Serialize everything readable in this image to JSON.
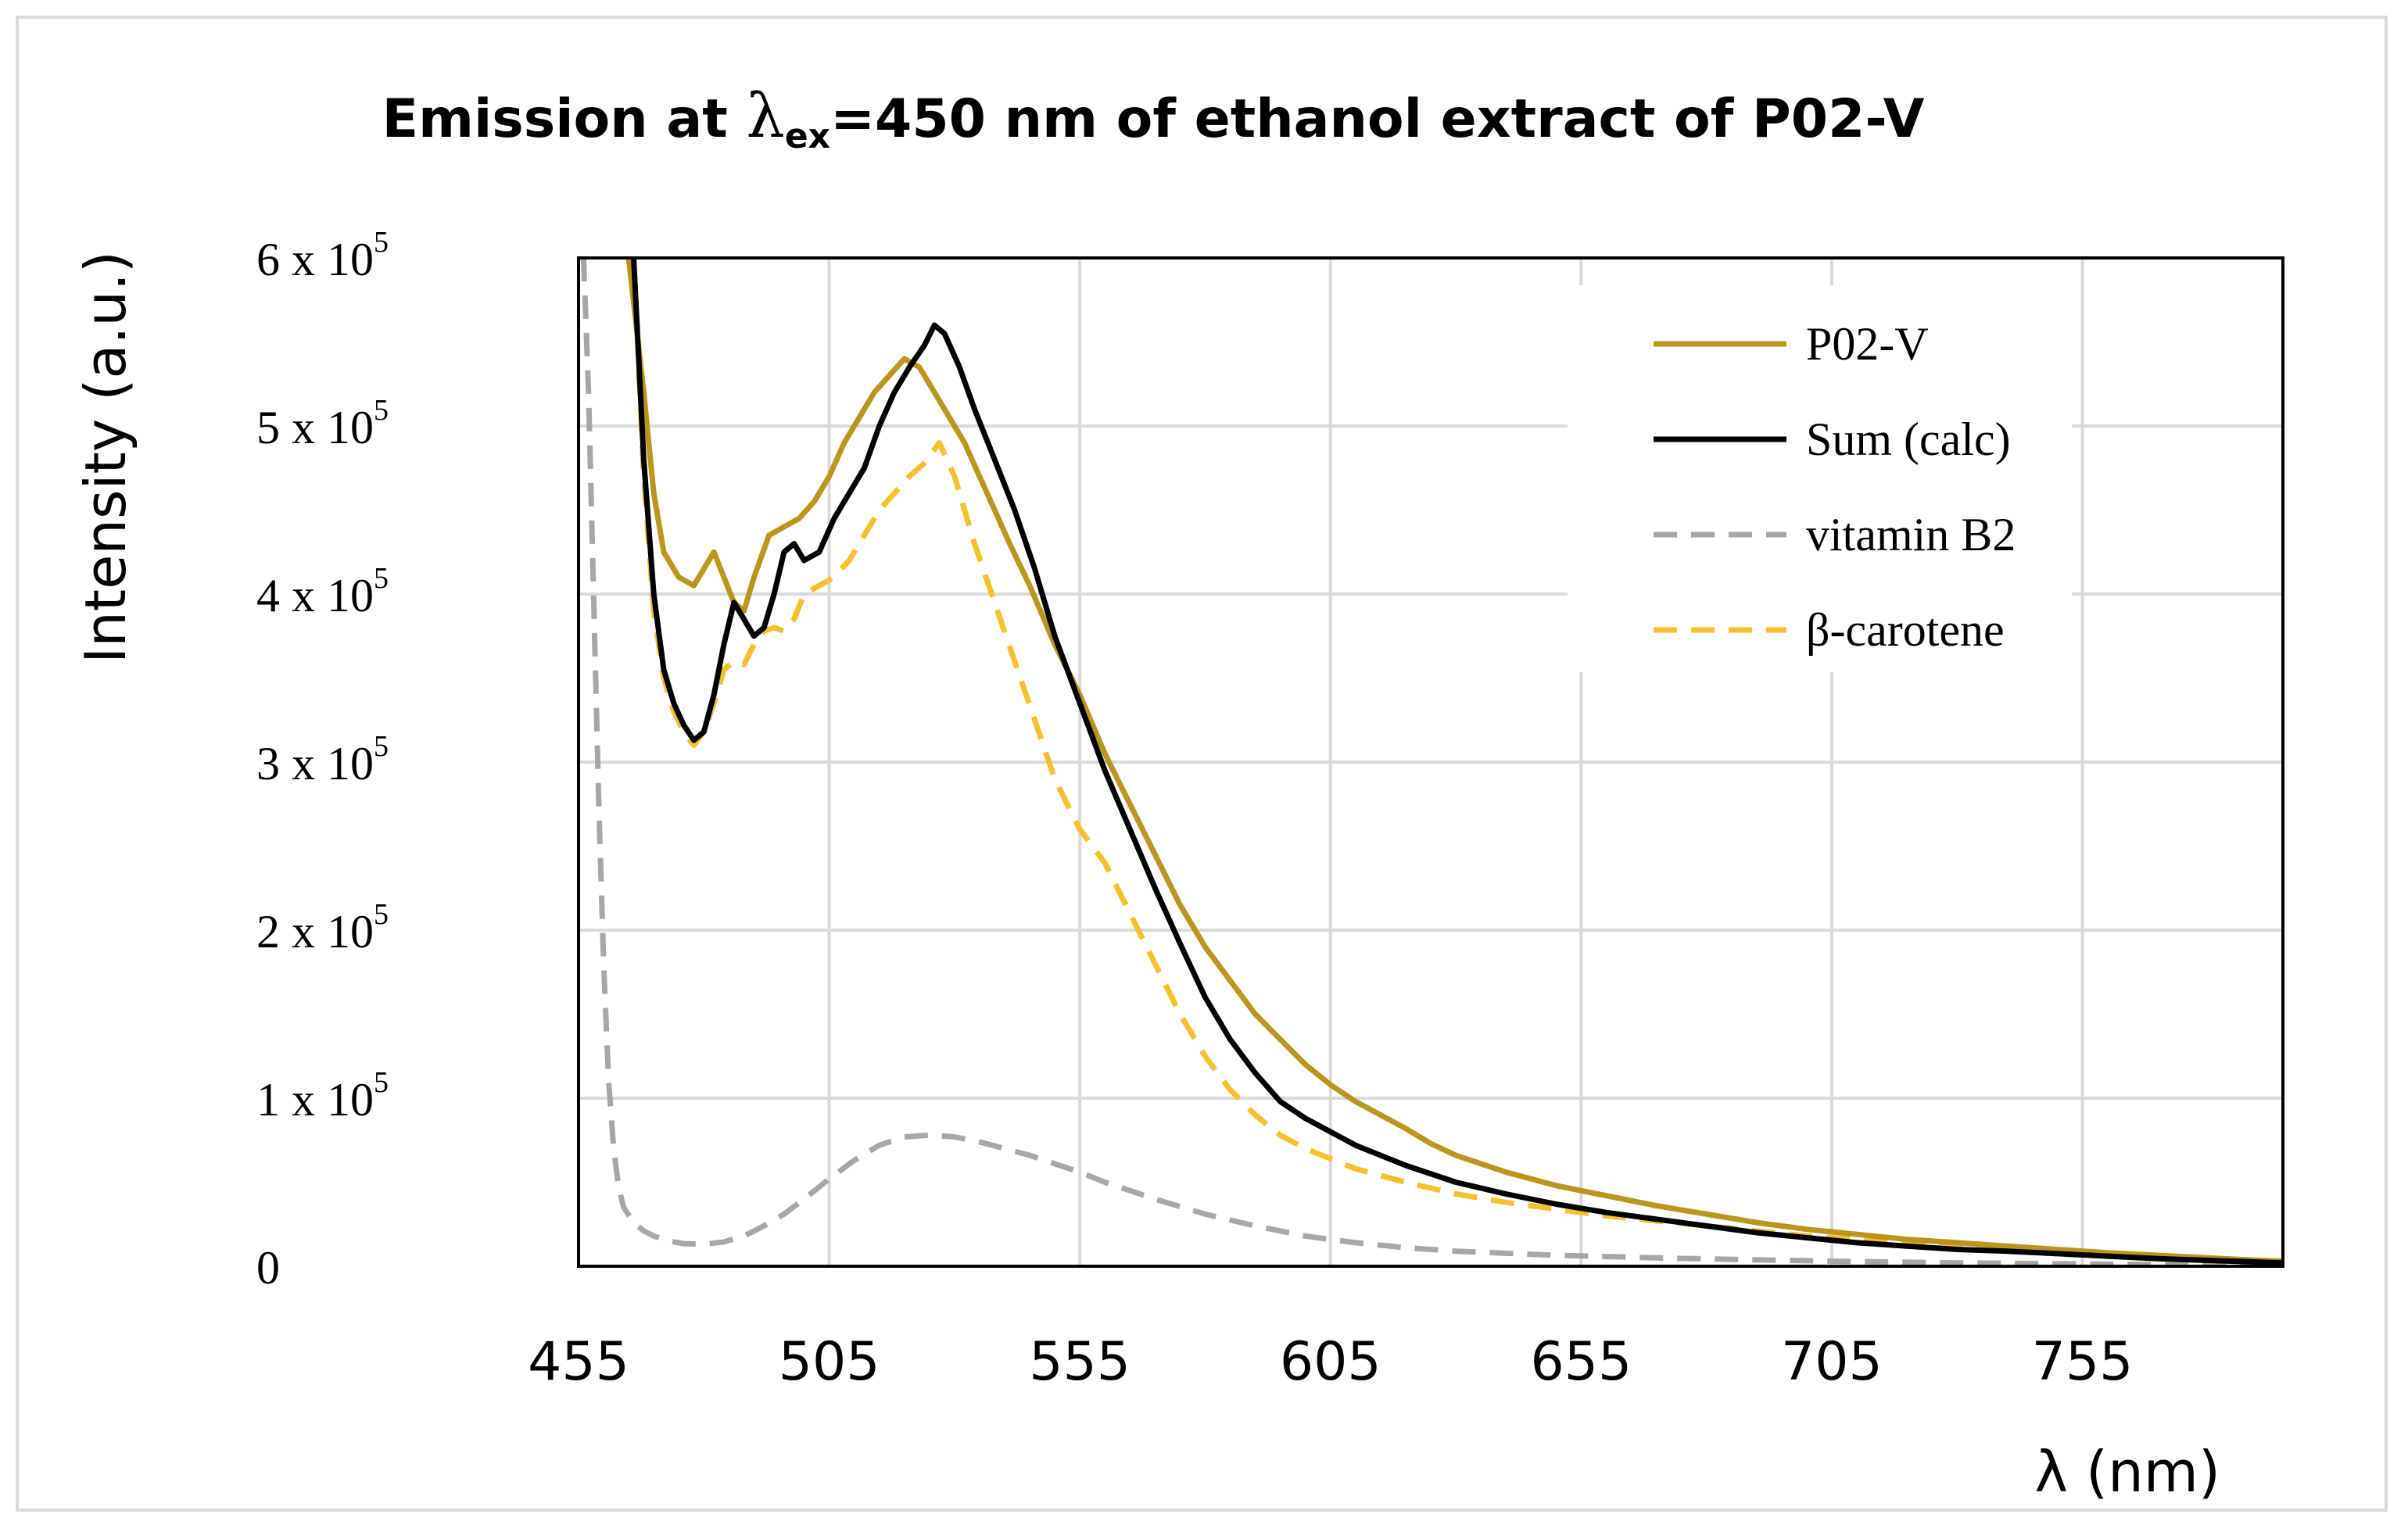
{
  "chart_data": {
    "type": "line",
    "title": {
      "prefix": "Emission at ",
      "symbol": "λ",
      "subscript": "ex",
      "suffix": "=450 nm of ethanol extract of P02-V"
    },
    "xlabel": "λ (nm)",
    "ylabel": "Intensity (a.u.)",
    "xlim": [
      455,
      795
    ],
    "ylim": [
      0,
      600000
    ],
    "x_ticks": [
      455,
      505,
      555,
      605,
      655,
      705,
      755
    ],
    "y_ticks": [
      {
        "value": 0,
        "mantissa": "0",
        "base": "",
        "exp": ""
      },
      {
        "value": 100000,
        "mantissa": "1",
        "base": " x 10",
        "exp": "5"
      },
      {
        "value": 200000,
        "mantissa": "2",
        "base": " x 10",
        "exp": "5"
      },
      {
        "value": 300000,
        "mantissa": "3",
        "base": " x 10",
        "exp": "5"
      },
      {
        "value": 400000,
        "mantissa": "4",
        "base": " x 10",
        "exp": "5"
      },
      {
        "value": 500000,
        "mantissa": "5",
        "base": " x 10",
        "exp": "5"
      },
      {
        "value": 600000,
        "mantissa": "6",
        "base": " x 10",
        "exp": "5"
      }
    ],
    "grid": true,
    "legend_position": "top-right",
    "series": [
      {
        "name": "P02-V",
        "color": "#b8961c",
        "dash": "solid",
        "x": [
          465,
          468,
          470,
          472,
          475,
          478,
          480,
          482,
          484,
          486,
          488,
          490,
          493,
          496,
          499,
          502,
          505,
          508,
          511,
          514,
          517,
          520,
          523,
          526,
          529,
          532,
          535,
          538,
          541,
          545,
          550,
          555,
          560,
          565,
          570,
          575,
          580,
          585,
          590,
          595,
          600,
          605,
          610,
          615,
          620,
          625,
          630,
          640,
          650,
          660,
          670,
          680,
          690,
          700,
          710,
          720,
          730,
          740,
          750,
          760,
          770,
          780,
          790,
          795
        ],
        "y": [
          600000,
          520000,
          460000,
          425000,
          410000,
          405000,
          415000,
          425000,
          410000,
          395000,
          390000,
          410000,
          435000,
          440000,
          445000,
          455000,
          470000,
          490000,
          505000,
          520000,
          530000,
          540000,
          535000,
          520000,
          505000,
          490000,
          470000,
          450000,
          430000,
          405000,
          370000,
          340000,
          305000,
          275000,
          245000,
          215000,
          190000,
          170000,
          150000,
          135000,
          120000,
          108000,
          98000,
          90000,
          82000,
          73000,
          66000,
          56000,
          48000,
          42000,
          36000,
          31000,
          26000,
          22000,
          19000,
          16000,
          14000,
          12000,
          10000,
          8000,
          6500,
          5000,
          3500,
          3000
        ]
      },
      {
        "name": "Sum (calc)",
        "color": "#000000",
        "dash": "solid",
        "x": [
          466,
          468,
          470,
          472,
          474,
          476,
          478,
          480,
          482,
          484,
          486,
          488,
          490,
          492,
          494,
          496,
          498,
          500,
          503,
          506,
          509,
          512,
          515,
          518,
          521,
          524,
          526,
          528,
          531,
          534,
          538,
          542,
          546,
          550,
          555,
          560,
          565,
          570,
          575,
          580,
          585,
          590,
          595,
          600,
          605,
          610,
          620,
          630,
          640,
          650,
          660,
          670,
          680,
          690,
          700,
          710,
          720,
          730,
          740,
          750,
          760,
          770,
          780,
          790,
          795
        ],
        "y": [
          600000,
          480000,
          400000,
          355000,
          335000,
          322000,
          313000,
          318000,
          340000,
          370000,
          395000,
          385000,
          375000,
          380000,
          400000,
          425000,
          430000,
          420000,
          425000,
          445000,
          460000,
          475000,
          500000,
          520000,
          535000,
          548000,
          560000,
          555000,
          535000,
          510000,
          480000,
          450000,
          415000,
          375000,
          335000,
          295000,
          260000,
          225000,
          192000,
          160000,
          135000,
          115000,
          98000,
          88000,
          80000,
          72000,
          60000,
          50000,
          43000,
          37000,
          32000,
          28000,
          24000,
          20000,
          17000,
          14000,
          12000,
          10000,
          9000,
          7500,
          6000,
          4500,
          3500,
          2500,
          2000
        ]
      },
      {
        "name": "vitamin B2",
        "color": "#a6a6a6",
        "dash": "dashed",
        "x": [
          456,
          457,
          458,
          459,
          460,
          461,
          462,
          463,
          464,
          466,
          468,
          470,
          473,
          476,
          480,
          484,
          488,
          492,
          496,
          500,
          505,
          510,
          515,
          520,
          525,
          530,
          535,
          540,
          545,
          550,
          555,
          560,
          570,
          580,
          590,
          600,
          610,
          620,
          630,
          650,
          670,
          690,
          710,
          730,
          750,
          770,
          795
        ],
        "y": [
          600000,
          520000,
          400000,
          280000,
          180000,
          110000,
          70000,
          47000,
          35000,
          26000,
          21000,
          18000,
          15000,
          13500,
          13000,
          14500,
          18000,
          24000,
          31000,
          40000,
          52000,
          63000,
          72000,
          77000,
          78000,
          77000,
          74000,
          70000,
          66000,
          61000,
          56000,
          50000,
          40000,
          31000,
          24000,
          18000,
          14000,
          11000,
          9000,
          6500,
          5000,
          3800,
          2800,
          2000,
          1500,
          1000,
          600
        ]
      },
      {
        "name": "β-carotene",
        "color": "#f5c02c",
        "dash": "dashed",
        "x": [
          466,
          468,
          470,
          472,
          474,
          476,
          478,
          480,
          482,
          484,
          486,
          488,
          490,
          492,
          494,
          496,
          498,
          500,
          503,
          506,
          509,
          512,
          515,
          518,
          521,
          524,
          527,
          530,
          534,
          538,
          542,
          546,
          550,
          555,
          560,
          565,
          570,
          575,
          580,
          585,
          590,
          595,
          600,
          605,
          610,
          620,
          630,
          640,
          650,
          660,
          670,
          680,
          690,
          700,
          710,
          720,
          730,
          740,
          750,
          760,
          770,
          780,
          790,
          795
        ],
        "y": [
          600000,
          470000,
          390000,
          350000,
          330000,
          318000,
          310000,
          318000,
          335000,
          355000,
          360000,
          358000,
          370000,
          378000,
          380000,
          378000,
          385000,
          400000,
          405000,
          410000,
          420000,
          435000,
          450000,
          460000,
          470000,
          478000,
          490000,
          470000,
          430000,
          395000,
          360000,
          325000,
          290000,
          260000,
          240000,
          210000,
          180000,
          150000,
          125000,
          105000,
          90000,
          78000,
          70000,
          64000,
          58000,
          50000,
          43000,
          38000,
          34000,
          30000,
          27000,
          24000,
          21000,
          18000,
          16000,
          14000,
          12000,
          10000,
          8500,
          7000,
          5500,
          4500,
          3500,
          3000
        ]
      }
    ]
  }
}
